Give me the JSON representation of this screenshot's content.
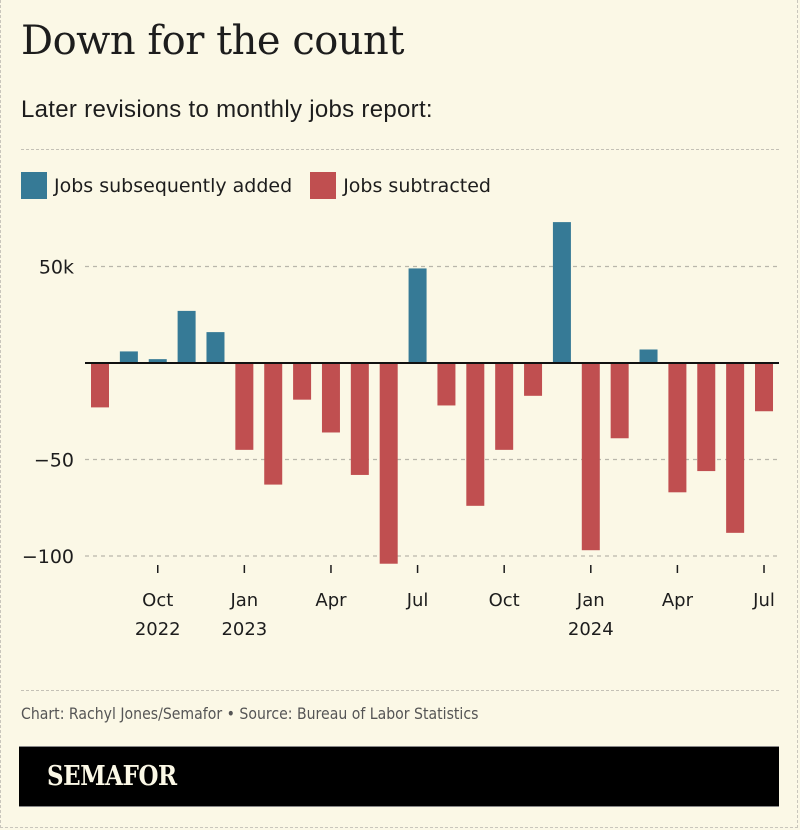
{
  "header": {
    "title": "Down for the count",
    "subtitle": "Later revisions to monthly jobs report:"
  },
  "legend": [
    {
      "label": "Jobs subsequently added",
      "color": "#367a96"
    },
    {
      "label": "Jobs subtracted",
      "color": "#c04f50"
    }
  ],
  "footer": {
    "credit": "Chart: Rachyl Jones/Semafor • Source: Bureau of Labor Statistics",
    "brand": "SEMAFOR"
  },
  "colors": {
    "positive": "#367a96",
    "negative": "#c04f50",
    "background": "#fbf8e6"
  },
  "chart_data": {
    "type": "bar",
    "title": "Down for the count",
    "subtitle": "Later revisions to monthly jobs report:",
    "xlabel": "",
    "ylabel": "",
    "ylim": [
      -105,
      75
    ],
    "yticks": [
      {
        "value": 50,
        "label": "50k"
      },
      {
        "value": -50,
        "label": "−50"
      },
      {
        "value": -100,
        "label": "−100"
      }
    ],
    "grid": true,
    "legend_position": "top-left",
    "units": "thousands of jobs",
    "categories": [
      "Aug 2022",
      "Sep 2022",
      "Oct 2022",
      "Nov 2022",
      "Dec 2022",
      "Jan 2023",
      "Feb 2023",
      "Mar 2023",
      "Apr 2023",
      "May 2023",
      "Jun 2023",
      "Jul 2023",
      "Aug 2023",
      "Sep 2023",
      "Oct 2023",
      "Nov 2023",
      "Dec 2023",
      "Jan 2024",
      "Feb 2024",
      "Mar 2024",
      "Apr 2024",
      "May 2024",
      "Jun 2024",
      "Jul 2024"
    ],
    "values": [
      -23,
      6,
      2,
      27,
      16,
      -45,
      -63,
      -19,
      -36,
      -58,
      -104,
      49,
      -22,
      -74,
      -45,
      -17,
      73,
      -97,
      -39,
      7,
      -67,
      -56,
      -88,
      -25
    ],
    "xticks": [
      {
        "index": 2,
        "line1": "Oct",
        "line2": "2022"
      },
      {
        "index": 5,
        "line1": "Jan",
        "line2": "2023"
      },
      {
        "index": 8,
        "line1": "Apr",
        "line2": ""
      },
      {
        "index": 11,
        "line1": "Jul",
        "line2": ""
      },
      {
        "index": 14,
        "line1": "Oct",
        "line2": ""
      },
      {
        "index": 17,
        "line1": "Jan",
        "line2": "2024"
      },
      {
        "index": 20,
        "line1": "Apr",
        "line2": ""
      },
      {
        "index": 23,
        "line1": "Jul",
        "line2": ""
      }
    ],
    "series": [
      {
        "name": "Jobs subsequently added",
        "color": "#367a96",
        "rule": "value > 0"
      },
      {
        "name": "Jobs subtracted",
        "color": "#c04f50",
        "rule": "value < 0"
      }
    ]
  }
}
